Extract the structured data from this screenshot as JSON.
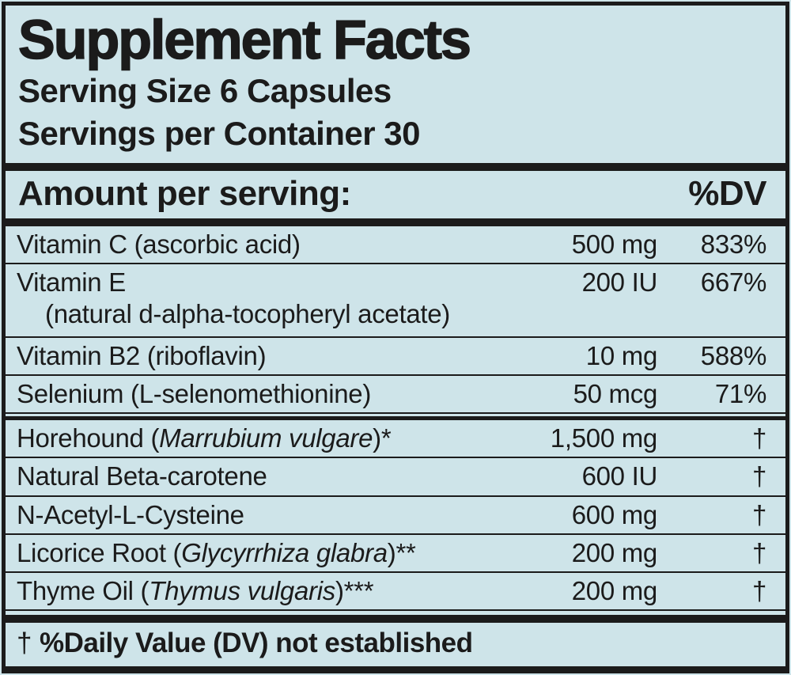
{
  "colors": {
    "background": "#cee4e9",
    "ink": "#1b1b1b"
  },
  "header": {
    "title": "Supplement Facts",
    "serving_size": "Serving Size 6 Capsules",
    "servings_per_container": "Servings per Container 30"
  },
  "columns": {
    "amount_label": "Amount per serving:",
    "dv_label": "%DV"
  },
  "rows": [
    {
      "name": "Vitamin C (ascorbic acid)",
      "amount": "500 mg",
      "dv": "833%"
    },
    {
      "name": "Vitamin E",
      "sub": "(natural d-alpha-tocopheryl acetate)",
      "amount": "200 IU",
      "dv": "667%"
    },
    {
      "name": "Vitamin B2 (riboflavin)",
      "amount": "10 mg",
      "dv": "588%"
    },
    {
      "name": "Selenium (L-selenomethionine)",
      "amount": "50 mcg",
      "dv": "71%"
    },
    {
      "name": "Horehound (",
      "name_italic": "Marrubium vulgare",
      "name_post": ")*",
      "amount": "1,500 mg",
      "dv": "†"
    },
    {
      "name": "Natural Beta-carotene",
      "amount": "600 IU",
      "dv": "†"
    },
    {
      "name": "N-Acetyl-L-Cysteine",
      "amount": "600 mg",
      "dv": "†"
    },
    {
      "name": "Licorice Root (",
      "name_italic": "Glycyrrhiza glabra",
      "name_post": ")**",
      "amount": "200 mg",
      "dv": "†"
    },
    {
      "name": "Thyme Oil (",
      "name_italic": "Thymus vulgaris",
      "name_post": ")***",
      "amount": "200 mg",
      "dv": "†"
    }
  ],
  "footnote": {
    "symbol": "†",
    "text": "%Daily Value (DV) not established"
  }
}
